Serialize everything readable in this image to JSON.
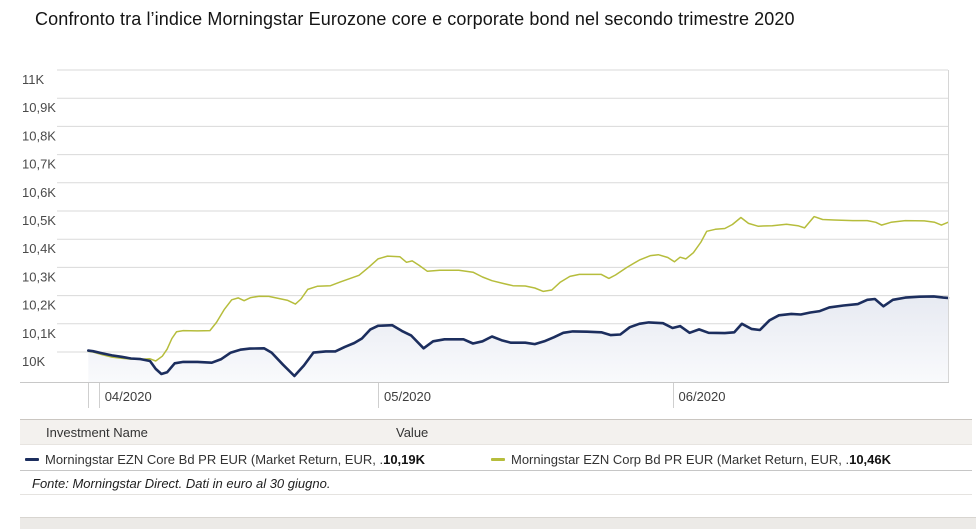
{
  "title": "Confronto tra l’indice Morningstar Eurozone core e corporate bond nel secondo trimestre 2020",
  "footer": {
    "text": "Fonte: Morningstar Direct. Dati in euro al 30 giugno."
  },
  "legend": {
    "columns": [
      "Investment Name",
      "Value"
    ],
    "rows": [
      {
        "swatch_color": "#1c2e5e",
        "label": "Morningstar EZN Core Bd PR EUR (Market Return, EUR, .",
        "value": "10,19K"
      },
      {
        "swatch_color": "#b6bd3c",
        "label": "Morningstar EZN Corp Bd PR EUR (Market Return, EUR, .",
        "value": "10,46K"
      }
    ]
  },
  "chart_data": {
    "type": "line",
    "title": "Confronto tra l’indice Morningstar Eurozone core e corporate bond nel secondo trimestre 2020",
    "y_axis": {
      "labels": [
        "11K",
        "10,9K",
        "10,8K",
        "10,7K",
        "10,6K",
        "10,5K",
        "10,4K",
        "10,3K",
        "10,2K",
        "10,1K",
        "10K"
      ],
      "min": 10000,
      "max": 11000,
      "step": 100,
      "gridlines": true
    },
    "x_axis": {
      "unit": "days_from_first_april_2020",
      "ticks": [
        {
          "label": "04/2020",
          "day": 0.6
        },
        {
          "label": "05/2020",
          "day": 30
        },
        {
          "label": "06/2020",
          "day": 61
        }
      ],
      "tick_marks": [
        -0.5,
        0.6,
        30,
        61
      ]
    },
    "series": [
      {
        "name": "Morningstar EZN Core Bd PR EUR (Market Return, EUR, .",
        "value_label": "10,19K",
        "color": "#1c2e5e",
        "line_width": 2.6,
        "area_fill": true,
        "area_fill_colors": [
          "#e7eaf2",
          "#f9fafc"
        ],
        "points": [
          [
            -0.5,
            10005
          ],
          [
            0,
            10003
          ],
          [
            1,
            9995
          ],
          [
            2,
            9988
          ],
          [
            3,
            9983
          ],
          [
            4,
            9977
          ],
          [
            5,
            9975
          ],
          [
            6,
            9968
          ],
          [
            6.6,
            9940
          ],
          [
            7.2,
            9922
          ],
          [
            7.8,
            9928
          ],
          [
            8.6,
            9960
          ],
          [
            9.5,
            9965
          ],
          [
            11,
            9965
          ],
          [
            12.5,
            9962
          ],
          [
            13.5,
            9975
          ],
          [
            14.5,
            9998
          ],
          [
            15.5,
            10008
          ],
          [
            16.5,
            10012
          ],
          [
            18,
            10013
          ],
          [
            18.8,
            9998
          ],
          [
            20,
            9955
          ],
          [
            21.2,
            9915
          ],
          [
            22.2,
            9952
          ],
          [
            23.2,
            9998
          ],
          [
            24.5,
            10002
          ],
          [
            25.5,
            10002
          ],
          [
            26.5,
            10018
          ],
          [
            27.5,
            10032
          ],
          [
            28.3,
            10048
          ],
          [
            29.2,
            10080
          ],
          [
            30,
            10093
          ],
          [
            31.5,
            10095
          ],
          [
            32.5,
            10075
          ],
          [
            33.5,
            10058
          ],
          [
            34.8,
            10013
          ],
          [
            35.8,
            10038
          ],
          [
            37,
            10045
          ],
          [
            39,
            10045
          ],
          [
            40,
            10030
          ],
          [
            41,
            10038
          ],
          [
            42,
            10055
          ],
          [
            43,
            10042
          ],
          [
            44,
            10033
          ],
          [
            45.5,
            10033
          ],
          [
            46.5,
            10028
          ],
          [
            47.5,
            10038
          ],
          [
            48.5,
            10052
          ],
          [
            49.5,
            10068
          ],
          [
            50.5,
            10073
          ],
          [
            52,
            10072
          ],
          [
            53.5,
            10070
          ],
          [
            54.5,
            10060
          ],
          [
            55.5,
            10062
          ],
          [
            56.5,
            10088
          ],
          [
            57.5,
            10100
          ],
          [
            58.5,
            10105
          ],
          [
            60,
            10102
          ],
          [
            61,
            10085
          ],
          [
            61.8,
            10092
          ],
          [
            62.8,
            10068
          ],
          [
            63.8,
            10080
          ],
          [
            64.8,
            10068
          ],
          [
            66.5,
            10067
          ],
          [
            67.5,
            10070
          ],
          [
            68.3,
            10100
          ],
          [
            69.3,
            10082
          ],
          [
            70.2,
            10078
          ],
          [
            71.2,
            10112
          ],
          [
            72.2,
            10130
          ],
          [
            73.5,
            10135
          ],
          [
            74.5,
            10133
          ],
          [
            75.5,
            10140
          ],
          [
            76.5,
            10145
          ],
          [
            77.5,
            10158
          ],
          [
            79,
            10165
          ],
          [
            80.5,
            10170
          ],
          [
            81.5,
            10185
          ],
          [
            82.3,
            10188
          ],
          [
            83.2,
            10162
          ],
          [
            84.2,
            10185
          ],
          [
            85.5,
            10193
          ],
          [
            87,
            10196
          ],
          [
            88.5,
            10197
          ],
          [
            89.5,
            10193
          ],
          [
            90,
            10192
          ]
        ]
      },
      {
        "name": "Morningstar EZN Corp Bd PR EUR (Market Return, EUR, .",
        "value_label": "10,46K",
        "color": "#b6bd3c",
        "line_width": 1.5,
        "area_fill": false,
        "points": [
          [
            -0.5,
            10002
          ],
          [
            0,
            10000
          ],
          [
            1,
            9990
          ],
          [
            2,
            9982
          ],
          [
            3,
            9978
          ],
          [
            4,
            9975
          ],
          [
            5,
            9974
          ],
          [
            6,
            9976
          ],
          [
            6.6,
            9968
          ],
          [
            7.3,
            9985
          ],
          [
            7.8,
            10010
          ],
          [
            8.3,
            10048
          ],
          [
            8.8,
            10072
          ],
          [
            9.5,
            10076
          ],
          [
            11,
            10075
          ],
          [
            12.3,
            10076
          ],
          [
            13,
            10105
          ],
          [
            13.8,
            10150
          ],
          [
            14.6,
            10185
          ],
          [
            15.3,
            10192
          ],
          [
            15.9,
            10182
          ],
          [
            16.6,
            10193
          ],
          [
            17.5,
            10198
          ],
          [
            18.5,
            10197
          ],
          [
            19.5,
            10190
          ],
          [
            20.5,
            10183
          ],
          [
            21.3,
            10170
          ],
          [
            21.9,
            10188
          ],
          [
            22.6,
            10222
          ],
          [
            23.6,
            10233
          ],
          [
            25,
            10235
          ],
          [
            26,
            10248
          ],
          [
            27,
            10260
          ],
          [
            28,
            10272
          ],
          [
            29,
            10300
          ],
          [
            30,
            10330
          ],
          [
            31,
            10340
          ],
          [
            32.3,
            10338
          ],
          [
            33,
            10318
          ],
          [
            33.6,
            10323
          ],
          [
            34.3,
            10308
          ],
          [
            35.2,
            10286
          ],
          [
            36.5,
            10290
          ],
          [
            38.5,
            10290
          ],
          [
            40,
            10283
          ],
          [
            41,
            10266
          ],
          [
            42,
            10253
          ],
          [
            43.2,
            10243
          ],
          [
            44.2,
            10235
          ],
          [
            45.5,
            10234
          ],
          [
            46.5,
            10227
          ],
          [
            47.4,
            10215
          ],
          [
            48.3,
            10220
          ],
          [
            49.2,
            10248
          ],
          [
            50.2,
            10268
          ],
          [
            51.2,
            10275
          ],
          [
            53.5,
            10275
          ],
          [
            54.3,
            10261
          ],
          [
            55,
            10273
          ],
          [
            56.2,
            10300
          ],
          [
            57.5,
            10326
          ],
          [
            58.7,
            10342
          ],
          [
            59.5,
            10345
          ],
          [
            60.5,
            10335
          ],
          [
            61.2,
            10320
          ],
          [
            61.8,
            10336
          ],
          [
            62.4,
            10330
          ],
          [
            63.2,
            10352
          ],
          [
            64,
            10390
          ],
          [
            64.6,
            10428
          ],
          [
            65.5,
            10435
          ],
          [
            66.5,
            10438
          ],
          [
            67.3,
            10452
          ],
          [
            68.2,
            10477
          ],
          [
            69,
            10456
          ],
          [
            70,
            10446
          ],
          [
            71.5,
            10448
          ],
          [
            73,
            10453
          ],
          [
            74.2,
            10448
          ],
          [
            74.9,
            10440
          ],
          [
            75.9,
            10480
          ],
          [
            76.8,
            10470
          ],
          [
            78,
            10468
          ],
          [
            80,
            10466
          ],
          [
            81.5,
            10466
          ],
          [
            82.4,
            10460
          ],
          [
            83,
            10450
          ],
          [
            84,
            10460
          ],
          [
            85.5,
            10466
          ],
          [
            87.5,
            10465
          ],
          [
            88.6,
            10460
          ],
          [
            89.3,
            10450
          ],
          [
            90,
            10460
          ]
        ]
      }
    ]
  }
}
